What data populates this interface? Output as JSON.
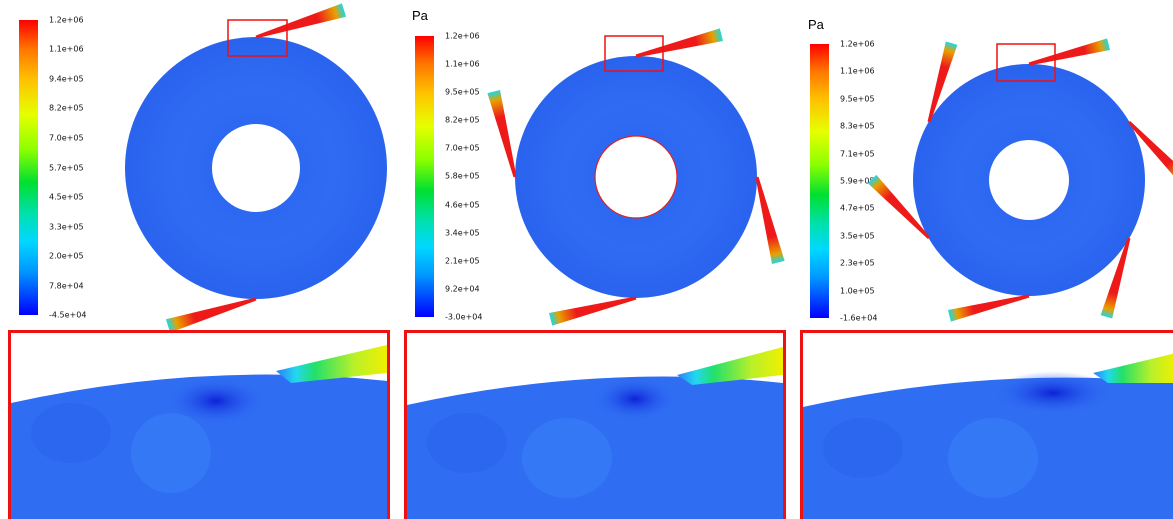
{
  "colors": {
    "field_blue": "#2e6bf2",
    "nozzle_red": "#ee1a1a",
    "highlight_box": "#ee1111"
  },
  "panels": [
    {
      "colorbar": {
        "unit": "",
        "ticks": [
          "1.2e+06",
          "1.1e+06",
          "9.4e+05",
          "8.2e+05",
          "7.0e+05",
          "5.7e+05",
          "4.5e+05",
          "3.3e+05",
          "2.0e+05",
          "7.8e+04",
          "-4.5e+04"
        ]
      },
      "nozzle_count": 2
    },
    {
      "colorbar": {
        "unit": "Pa",
        "ticks": [
          "1.2e+06",
          "1.1e+06",
          "9.5e+05",
          "8.2e+05",
          "7.0e+05",
          "5.8e+05",
          "4.6e+05",
          "3.4e+05",
          "2.1e+05",
          "9.2e+04",
          "-3.0e+04"
        ]
      },
      "nozzle_count": 4
    },
    {
      "colorbar": {
        "unit": "Pa",
        "ticks": [
          "1.2e+06",
          "1.1e+06",
          "9.5e+05",
          "8.3e+05",
          "7.1e+05",
          "5.9e+05",
          "4.7e+05",
          "3.5e+05",
          "2.3e+05",
          "1.0e+05",
          "-1.6e+04"
        ]
      },
      "nozzle_count": 6
    }
  ]
}
